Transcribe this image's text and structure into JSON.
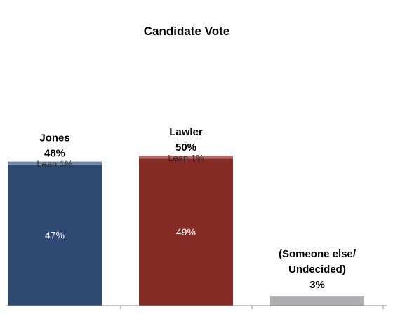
{
  "chart_data": {
    "type": "bar",
    "title": "Candidate Vote",
    "xlabel": "",
    "ylabel": "",
    "ylim": [
      0,
      65
    ],
    "grid": false,
    "legend": "none",
    "categories": [
      "Jones",
      "Lawler",
      "(Someone else/ Undecided)"
    ],
    "bars": [
      {
        "name": "Jones",
        "total": 48,
        "total_label": "48%",
        "base": 47,
        "base_label": "47%",
        "lean": 1,
        "lean_label": "Lean 1%",
        "color": "#2E4A72",
        "lean_color": "#6F86A8"
      },
      {
        "name": "Lawler",
        "total": 50,
        "total_label": "50%",
        "base": 49,
        "base_label": "49%",
        "lean": 1,
        "lean_label": "Lean 1%",
        "color": "#842B25",
        "lean_color": "#B56A66"
      },
      {
        "name_lines": [
          "(Someone else/",
          "Undecided)"
        ],
        "total": 3,
        "total_label": "3%",
        "base": 3,
        "color": "#AEAEB2"
      }
    ]
  }
}
